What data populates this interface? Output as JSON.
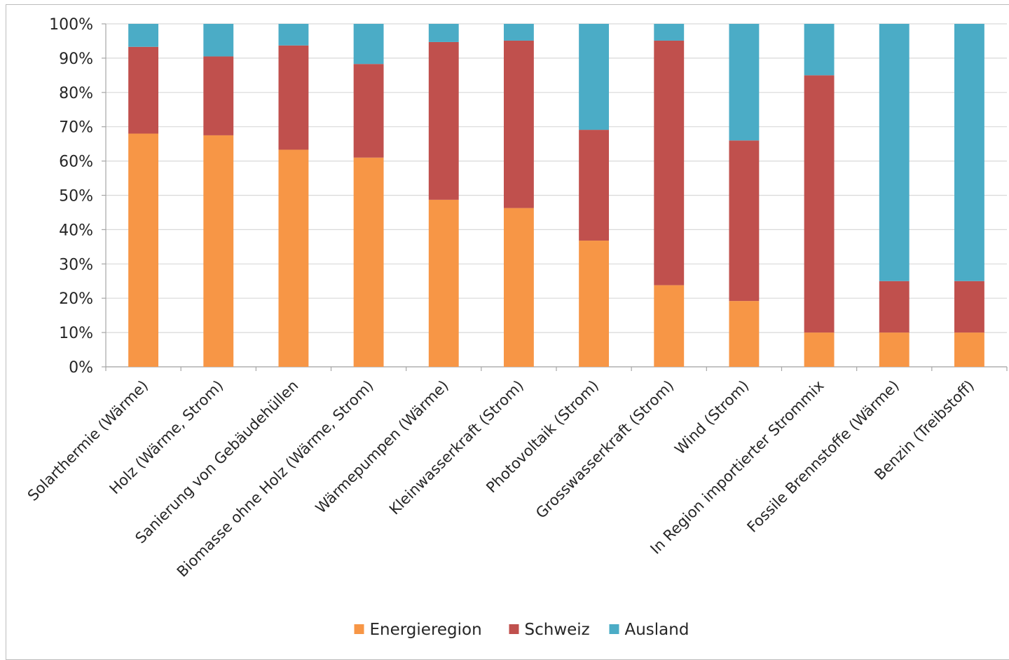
{
  "chart_data": {
    "type": "bar",
    "stacked": true,
    "percent": true,
    "title": "",
    "xlabel": "",
    "ylabel": "",
    "ylim": [
      0,
      100
    ],
    "yticks": [
      "0%",
      "10%",
      "20%",
      "30%",
      "40%",
      "50%",
      "60%",
      "70%",
      "80%",
      "90%",
      "100%"
    ],
    "grid": true,
    "legend_position": "bottom",
    "categories": [
      "Solarthermie (Wärme)",
      "Holz (Wärme, Strom)",
      "Sanierung von Gebäudehüllen",
      "Biomasse ohne Holz (Wärme, Strom)",
      "Wärmepumpen (Wärme)",
      "Kleinwasserkraft (Strom)",
      "Photovoltaik (Strom)",
      "Grosswasserkraft (Strom)",
      "Wind (Strom)",
      "In Region importierter Strommix",
      "Fossile Brennstoffe (Wärme)",
      "Benzin (Treibstoff)"
    ],
    "series": [
      {
        "name": "Energieregion",
        "color": "#f79646",
        "values": [
          68,
          67.5,
          63.3,
          61,
          48.7,
          46.3,
          36.8,
          23.8,
          19.2,
          10,
          10,
          10
        ]
      },
      {
        "name": "Schweiz",
        "color": "#c0504d",
        "values": [
          25.3,
          23,
          30.4,
          27.3,
          46,
          48.8,
          32.3,
          71.3,
          46.8,
          75,
          15,
          15
        ]
      },
      {
        "name": "Ausland",
        "color": "#4bacc6",
        "values": [
          6.7,
          9.5,
          6.3,
          11.7,
          5.3,
          4.9,
          30.9,
          4.9,
          34,
          15,
          75,
          75
        ]
      }
    ]
  }
}
